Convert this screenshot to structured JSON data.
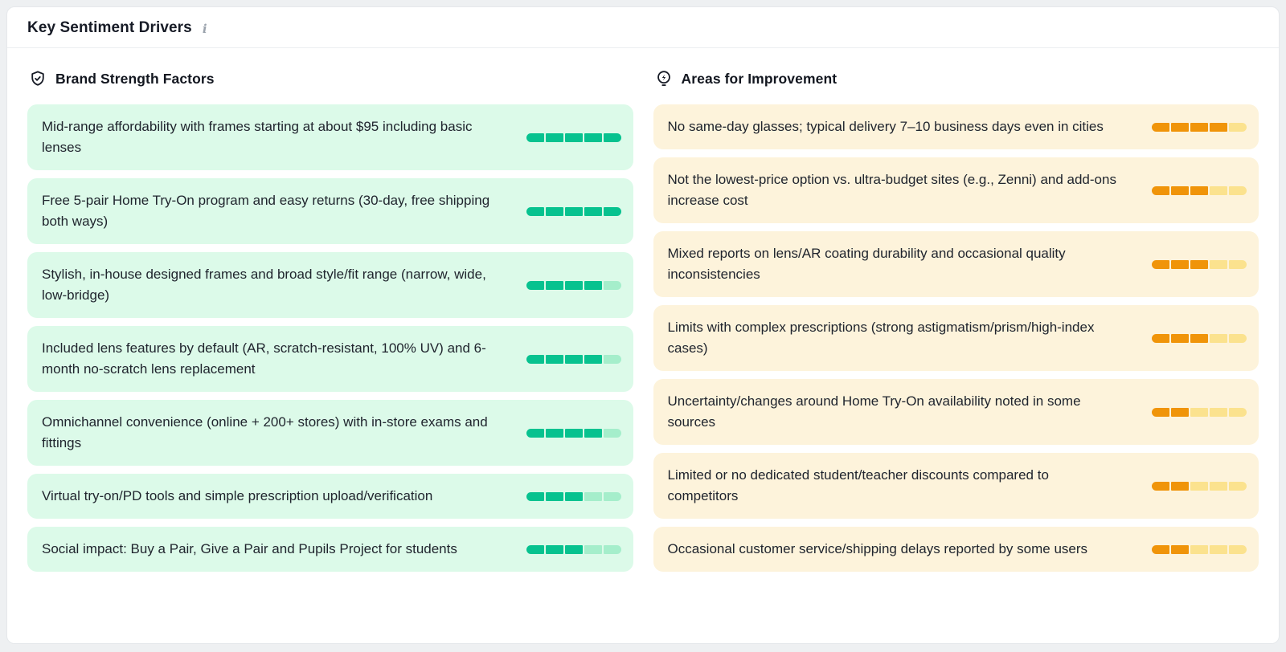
{
  "header": {
    "title": "Key Sentiment Drivers",
    "info_icon": "i"
  },
  "scale_max": 5,
  "colors": {
    "strength_fill": "#07c28f",
    "strength_empty": "#a5eecb",
    "strength_card_bg": "#dcfae9",
    "improvement_fill": "#f09409",
    "improvement_empty": "#fbe28e",
    "improvement_card_bg": "#fdf3db"
  },
  "strengths": {
    "title": "Brand Strength Factors",
    "icon": "shield-check-icon",
    "items": [
      {
        "text": "Mid-range affordability with frames starting at about $95 including basic lenses",
        "score": 5
      },
      {
        "text": "Free 5-pair Home Try-On program and easy returns (30-day, free shipping both ways)",
        "score": 5
      },
      {
        "text": "Stylish, in-house designed frames and broad style/fit range (narrow, wide, low-bridge)",
        "score": 4
      },
      {
        "text": "Included lens features by default (AR, scratch-resistant, 100% UV) and 6-month no-scratch lens replacement",
        "score": 4
      },
      {
        "text": "Omnichannel convenience (online + 200+ stores) with in-store exams and fittings",
        "score": 4
      },
      {
        "text": "Virtual try-on/PD tools and simple prescription upload/verification",
        "score": 3
      },
      {
        "text": "Social impact: Buy a Pair, Give a Pair and Pupils Project for students",
        "score": 3
      }
    ]
  },
  "improvements": {
    "title": "Areas for Improvement",
    "icon": "lightbulb-zap-icon",
    "items": [
      {
        "text": "No same-day glasses; typical delivery 7–10 business days even in cities",
        "score": 4
      },
      {
        "text": "Not the lowest-price option vs. ultra-budget sites (e.g., Zenni) and add-ons increase cost",
        "score": 3
      },
      {
        "text": "Mixed reports on lens/AR coating durability and occasional quality inconsistencies",
        "score": 3
      },
      {
        "text": "Limits with complex prescriptions (strong astigmatism/prism/high-index cases)",
        "score": 3
      },
      {
        "text": "Uncertainty/changes around Home Try-On availability noted in some sources",
        "score": 2
      },
      {
        "text": "Limited or no dedicated student/teacher discounts compared to competitors",
        "score": 2
      },
      {
        "text": "Occasional customer service/shipping delays reported by some users",
        "score": 2
      }
    ]
  }
}
